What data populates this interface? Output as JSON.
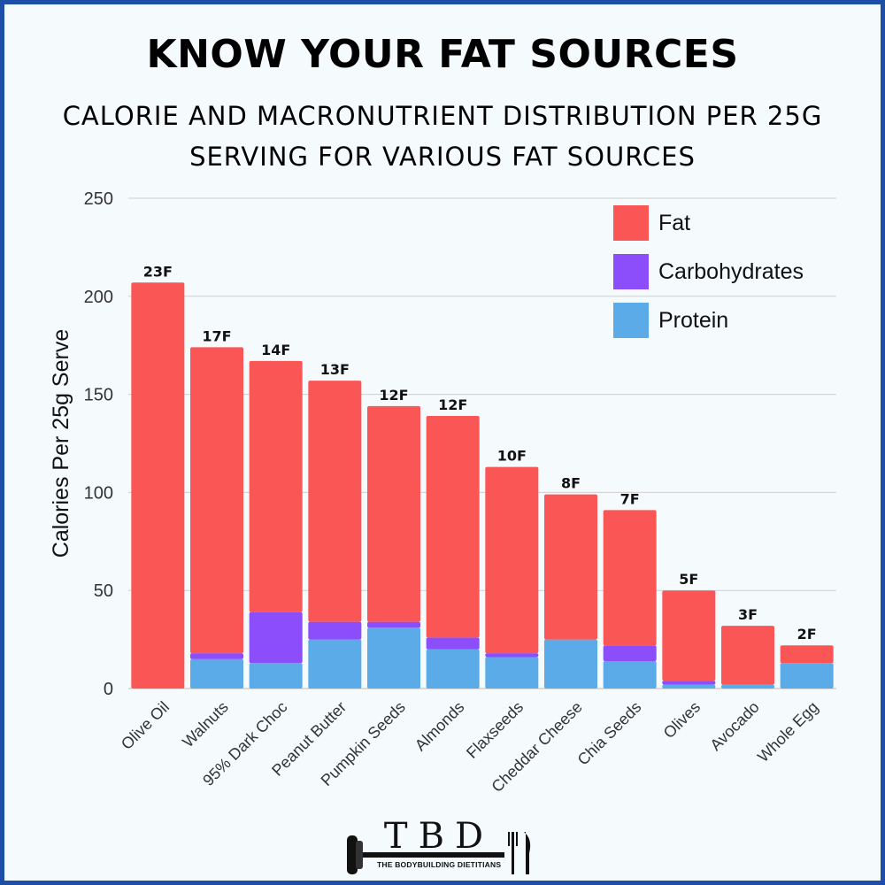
{
  "header": {
    "title": "KNOW YOUR FAT SOURCES",
    "subtitle_line1": "CALORIE AND MACRONUTRIENT DISTRIBUTION PER 25G",
    "subtitle_line2": "SERVING FOR VARIOUS FAT SOURCES"
  },
  "chart_data": {
    "type": "bar",
    "stacked": true,
    "title": "KNOW YOUR FAT SOURCES",
    "subtitle": "CALORIE AND MACRONUTRIENT DISTRIBUTION PER 25G SERVING FOR VARIOUS FAT SOURCES",
    "xlabel": "",
    "ylabel": "Calories Per 25g Serve",
    "ylim": [
      0,
      250
    ],
    "yticks": [
      0,
      50,
      100,
      150,
      200,
      250
    ],
    "grid": true,
    "legend_position": "top-right",
    "categories": [
      "Olive Oil",
      "Walnuts",
      "95% Dark Choc",
      "Peanut Butter",
      "Pumpkin Seeds",
      "Almonds",
      "Flaxseeds",
      "Cheddar Cheese",
      "Chia Seeds",
      "Olives",
      "Avocado",
      "Whole Egg"
    ],
    "bar_labels": [
      "23F",
      "17F",
      "14F",
      "13F",
      "12F",
      "12F",
      "10F",
      "8F",
      "7F",
      "5F",
      "3F",
      "2F"
    ],
    "series": [
      {
        "name": "Protein",
        "color": "#5aabe8",
        "values": [
          0,
          15,
          13,
          25,
          31,
          20,
          16,
          25,
          14,
          2,
          2,
          13
        ]
      },
      {
        "name": "Carbohydrates",
        "color": "#8c4dfa",
        "values": [
          0,
          3,
          26,
          9,
          3,
          6,
          2,
          0,
          8,
          2,
          0,
          0
        ]
      },
      {
        "name": "Fat",
        "color": "#fb5656",
        "values": [
          207,
          156,
          128,
          123,
          110,
          113,
          95,
          74,
          69,
          46,
          30,
          9
        ]
      }
    ],
    "legend": [
      {
        "name": "Fat",
        "color": "#fb5656"
      },
      {
        "name": "Carbohydrates",
        "color": "#8c4dfa"
      },
      {
        "name": "Protein",
        "color": "#5aabe8"
      }
    ]
  },
  "logo": {
    "letters": "TBD",
    "tagline": "THE BODYBUILDING DIETITIANS"
  }
}
